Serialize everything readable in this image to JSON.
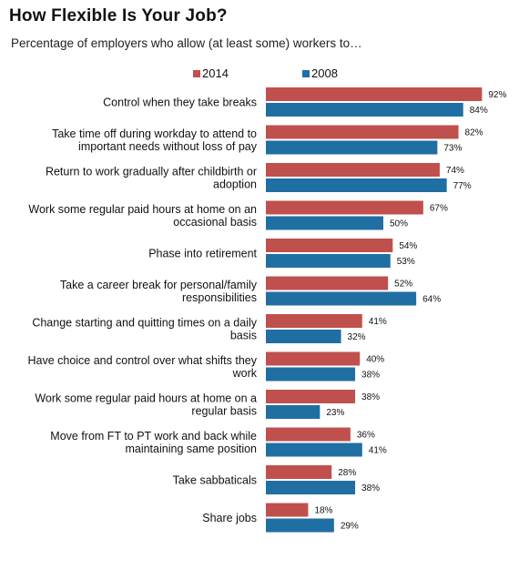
{
  "chart_data": {
    "type": "bar",
    "orientation": "horizontal",
    "title": "How Flexible Is Your Job?",
    "subtitle": "Percentage of employers who allow (at least some) workers to…",
    "xlabel": "",
    "ylabel": "",
    "xlim": [
      0,
      100
    ],
    "value_suffix": "%",
    "grid": false,
    "legend_position": "top",
    "categories": [
      [
        "Control when they take breaks"
      ],
      [
        "Take time off during workday to attend to",
        "important needs without loss of pay"
      ],
      [
        "Return to work gradually after childbirth or",
        "adoption"
      ],
      [
        "Work some regular paid hours at home on an",
        "occasional basis"
      ],
      [
        "Phase into retirement"
      ],
      [
        "Take a career break for personal/family",
        "responsibilities"
      ],
      [
        "Change starting and quitting times on a daily",
        "basis"
      ],
      [
        "Have choice and control over what shifts they",
        "work"
      ],
      [
        "Work some regular paid hours at home on a",
        "regular basis"
      ],
      [
        "Move from FT to PT work and back while",
        "maintaining same position"
      ],
      [
        "Take sabbaticals"
      ],
      [
        "Share jobs"
      ]
    ],
    "series": [
      {
        "name": "2014",
        "color": "#c0504d",
        "values": [
          92,
          82,
          74,
          67,
          54,
          52,
          41,
          40,
          38,
          36,
          28,
          18
        ]
      },
      {
        "name": "2008",
        "color": "#1f6fa3",
        "values": [
          84,
          73,
          77,
          50,
          53,
          64,
          32,
          38,
          23,
          41,
          38,
          29
        ]
      }
    ]
  }
}
